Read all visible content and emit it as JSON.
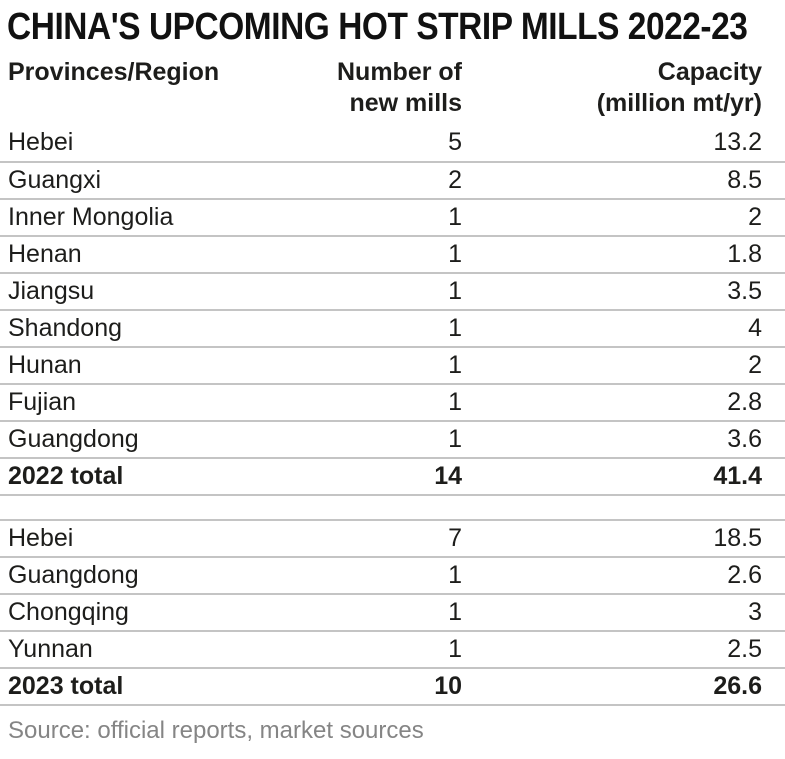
{
  "title": "CHINA'S UPCOMING HOT STRIP MILLS 2022-23",
  "table": {
    "header": {
      "col1": "Provinces/Region",
      "col2": [
        "Number of",
        "new mills"
      ],
      "col3": [
        "Capacity",
        "(million mt/yr)"
      ]
    },
    "sections": [
      {
        "rows": [
          {
            "region": "Hebei",
            "mills": "5",
            "capacity": "13.2"
          },
          {
            "region": "Guangxi",
            "mills": "2",
            "capacity": "8.5"
          },
          {
            "region": "Inner Mongolia",
            "mills": "1",
            "capacity": "2"
          },
          {
            "region": "Henan",
            "mills": "1",
            "capacity": "1.8"
          },
          {
            "region": "Jiangsu",
            "mills": "1",
            "capacity": "3.5"
          },
          {
            "region": "Shandong",
            "mills": "1",
            "capacity": "4"
          },
          {
            "region": "Hunan",
            "mills": "1",
            "capacity": "2"
          },
          {
            "region": "Fujian",
            "mills": "1",
            "capacity": "2.8"
          },
          {
            "region": "Guangdong",
            "mills": "1",
            "capacity": "3.6"
          }
        ],
        "total": {
          "region": "2022 total",
          "mills": "14",
          "capacity": "41.4"
        }
      },
      {
        "rows": [
          {
            "region": "Hebei",
            "mills": "7",
            "capacity": "18.5"
          },
          {
            "region": "Guangdong",
            "mills": "1",
            "capacity": "2.6"
          },
          {
            "region": "Chongqing",
            "mills": "1",
            "capacity": "3"
          },
          {
            "region": "Yunnan",
            "mills": "1",
            "capacity": "2.5"
          }
        ],
        "total": {
          "region": "2023 total",
          "mills": "10",
          "capacity": "26.6"
        }
      }
    ]
  },
  "source": "Source: official reports, market sources",
  "colors": {
    "text": "#1d1d1b",
    "title_text": "#111111",
    "rule": "#c4c4c4",
    "source_text": "#858585",
    "background": "#ffffff"
  },
  "chart_data": {
    "type": "table",
    "title": "CHINA'S UPCOMING HOT STRIP MILLS 2022-23",
    "columns": [
      "Provinces/Region",
      "Number of new mills",
      "Capacity (million mt/yr)"
    ],
    "sections": [
      {
        "year": "2022",
        "rows": [
          [
            "Hebei",
            5,
            13.2
          ],
          [
            "Guangxi",
            2,
            8.5
          ],
          [
            "Inner Mongolia",
            1,
            2
          ],
          [
            "Henan",
            1,
            1.8
          ],
          [
            "Jiangsu",
            1,
            3.5
          ],
          [
            "Shandong",
            1,
            4
          ],
          [
            "Hunan",
            1,
            2
          ],
          [
            "Fujian",
            1,
            2.8
          ],
          [
            "Guangdong",
            1,
            3.6
          ]
        ],
        "total": [
          "2022 total",
          14,
          41.4
        ]
      },
      {
        "year": "2023",
        "rows": [
          [
            "Hebei",
            7,
            18.5
          ],
          [
            "Guangdong",
            1,
            2.6
          ],
          [
            "Chongqing",
            1,
            3
          ],
          [
            "Yunnan",
            1,
            2.5
          ]
        ],
        "total": [
          "2023 total",
          10,
          26.6
        ]
      }
    ],
    "source": "Source: official reports, market sources",
    "layout": {
      "value_alignment": "right",
      "grid": "horizontal-rules-only",
      "legend": "none"
    }
  }
}
